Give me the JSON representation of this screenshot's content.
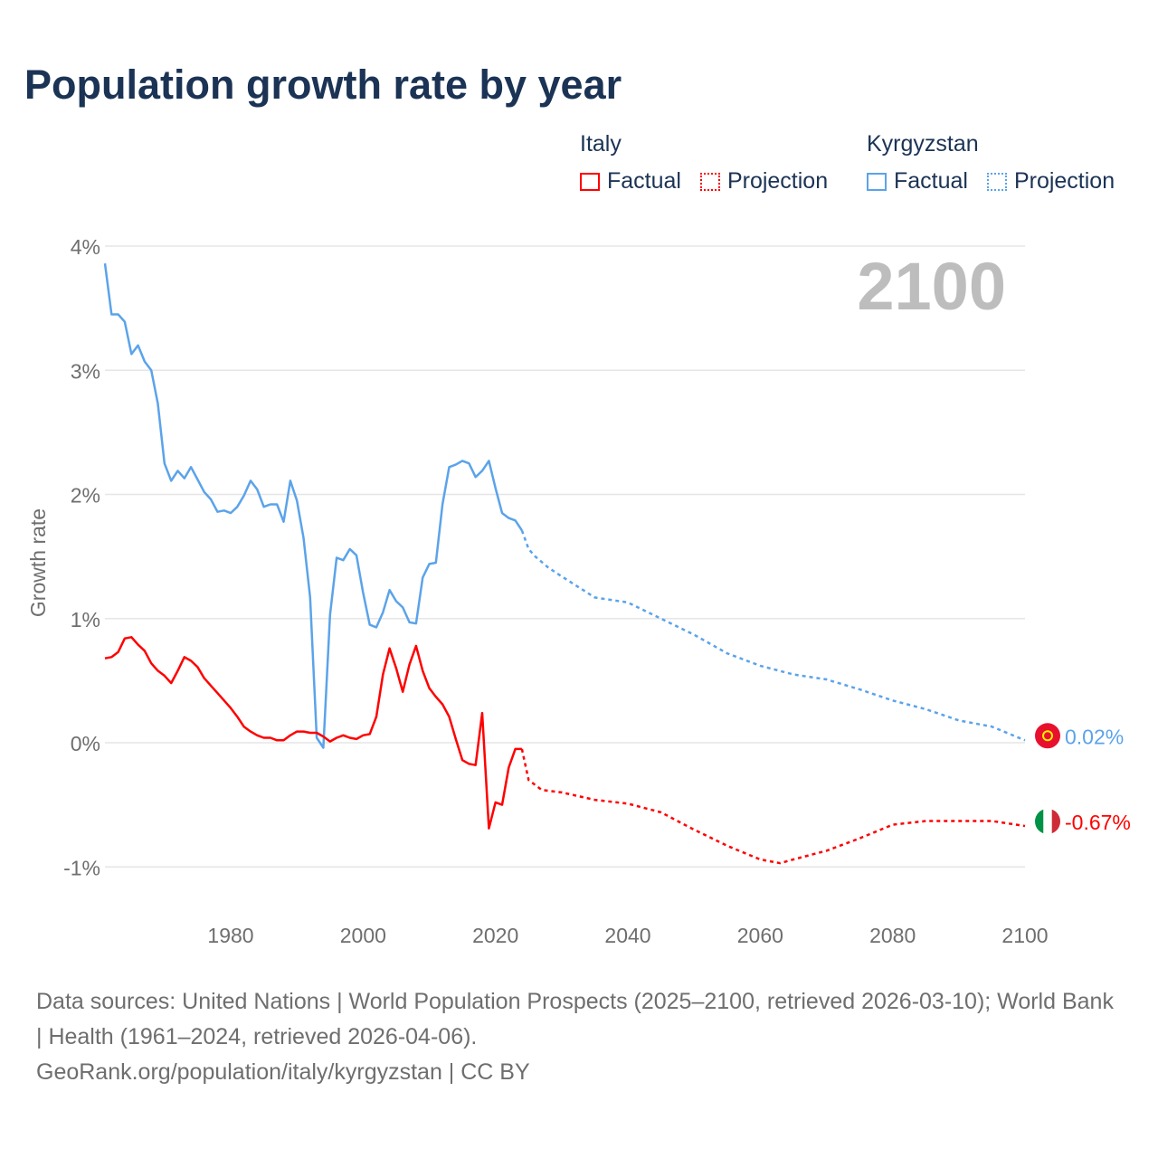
{
  "title": "Population growth rate by year",
  "legend": {
    "groups": [
      {
        "name": "Italy",
        "factual": "Factual",
        "projection": "Projection",
        "color": "#ff0000"
      },
      {
        "name": "Kyrgyzstan",
        "factual": "Factual",
        "projection": "Projection",
        "color": "#5ba3ea"
      }
    ]
  },
  "year_label": "2100",
  "source": {
    "line1": "Data sources: United Nations | World Population Prospects (2025–2100, retrieved 2026-03-10); World Bank | Health (1961–2024, retrieved 2026-04-06).",
    "line2": "GeoRank.org/population/italy/kyrgyzstan | CC BY"
  },
  "chart_data": {
    "type": "line",
    "title": "Population growth rate by year",
    "xlabel": "",
    "ylabel": "Growth rate",
    "xlim": [
      1961,
      2100
    ],
    "ylim": [
      -1.3,
      4.1
    ],
    "x_ticks": [
      1980,
      2000,
      2020,
      2040,
      2060,
      2080,
      2100
    ],
    "x_tick_labels": [
      "1980",
      "2000",
      "2020",
      "2040",
      "2060",
      "2080",
      "2100"
    ],
    "y_ticks": [
      4,
      3,
      2,
      1,
      0,
      -1
    ],
    "y_tick_labels": [
      "4%",
      "3%",
      "2%",
      "1%",
      "0%",
      "-1%"
    ],
    "grid": true,
    "legend_position": "top-right",
    "series": [
      {
        "name": "Kyrgyzstan",
        "color": "#5ba3ea",
        "end_label": "0.02%",
        "factual": {
          "x": [
            1961,
            1962,
            1963,
            1964,
            1965,
            1966,
            1967,
            1968,
            1969,
            1970,
            1971,
            1972,
            1973,
            1974,
            1975,
            1976,
            1977,
            1978,
            1979,
            1980,
            1981,
            1982,
            1983,
            1984,
            1985,
            1986,
            1987,
            1988,
            1989,
            1990,
            1991,
            1992,
            1993,
            1994,
            1995,
            1996,
            1997,
            1998,
            1999,
            2000,
            2001,
            2002,
            2003,
            2004,
            2005,
            2006,
            2007,
            2008,
            2009,
            2010,
            2011,
            2012,
            2013,
            2014,
            2015,
            2016,
            2017,
            2018,
            2019,
            2020,
            2021,
            2022,
            2023,
            2024
          ],
          "y": [
            3.86,
            3.45,
            3.45,
            3.39,
            3.13,
            3.2,
            3.07,
            3.0,
            2.73,
            2.25,
            2.11,
            2.19,
            2.13,
            2.22,
            2.12,
            2.02,
            1.96,
            1.86,
            1.87,
            1.85,
            1.9,
            1.99,
            2.11,
            2.04,
            1.9,
            1.92,
            1.92,
            1.78,
            2.11,
            1.95,
            1.65,
            1.17,
            0.04,
            -0.04,
            1.03,
            1.49,
            1.47,
            1.56,
            1.51,
            1.21,
            0.95,
            0.93,
            1.05,
            1.23,
            1.14,
            1.09,
            0.97,
            0.96,
            1.33,
            1.44,
            1.45,
            1.92,
            2.22,
            2.24,
            2.27,
            2.25,
            2.14,
            2.19,
            2.27,
            2.05,
            1.85,
            1.81,
            1.79,
            1.71
          ]
        },
        "projection": {
          "x": [
            2024,
            2025,
            2026,
            2028,
            2030,
            2035,
            2040,
            2045,
            2050,
            2055,
            2060,
            2065,
            2070,
            2075,
            2080,
            2085,
            2090,
            2095,
            2100
          ],
          "y": [
            1.71,
            1.56,
            1.5,
            1.41,
            1.34,
            1.17,
            1.13,
            1.0,
            0.87,
            0.72,
            0.62,
            0.55,
            0.51,
            0.43,
            0.34,
            0.27,
            0.18,
            0.13,
            0.02
          ]
        }
      },
      {
        "name": "Italy",
        "color": "#ff0000",
        "end_label": "-0.67%",
        "factual": {
          "x": [
            1961,
            1962,
            1963,
            1964,
            1965,
            1966,
            1967,
            1968,
            1969,
            1970,
            1971,
            1972,
            1973,
            1974,
            1975,
            1976,
            1977,
            1978,
            1979,
            1980,
            1981,
            1982,
            1983,
            1984,
            1985,
            1986,
            1987,
            1988,
            1989,
            1990,
            1991,
            1992,
            1993,
            1994,
            1995,
            1996,
            1997,
            1998,
            1999,
            2000,
            2001,
            2002,
            2003,
            2004,
            2005,
            2006,
            2007,
            2008,
            2009,
            2010,
            2011,
            2012,
            2013,
            2014,
            2015,
            2016,
            2017,
            2018,
            2019,
            2020,
            2021,
            2022,
            2023,
            2024
          ],
          "y": [
            0.68,
            0.69,
            0.73,
            0.84,
            0.85,
            0.79,
            0.74,
            0.64,
            0.58,
            0.54,
            0.48,
            0.58,
            0.69,
            0.66,
            0.61,
            0.52,
            0.46,
            0.4,
            0.34,
            0.28,
            0.21,
            0.13,
            0.09,
            0.06,
            0.04,
            0.04,
            0.02,
            0.02,
            0.06,
            0.09,
            0.09,
            0.08,
            0.08,
            0.05,
            0.01,
            0.04,
            0.06,
            0.04,
            0.03,
            0.06,
            0.07,
            0.21,
            0.55,
            0.76,
            0.6,
            0.41,
            0.63,
            0.78,
            0.58,
            0.44,
            0.37,
            0.31,
            0.21,
            0.03,
            -0.14,
            -0.17,
            -0.18,
            0.24,
            -0.69,
            -0.48,
            -0.5,
            -0.2,
            -0.05,
            -0.05
          ]
        },
        "projection": {
          "x": [
            2024,
            2025,
            2027,
            2030,
            2035,
            2040,
            2045,
            2050,
            2055,
            2060,
            2063,
            2065,
            2070,
            2075,
            2080,
            2085,
            2090,
            2095,
            2100
          ],
          "y": [
            -0.05,
            -0.3,
            -0.38,
            -0.4,
            -0.46,
            -0.49,
            -0.56,
            -0.7,
            -0.83,
            -0.94,
            -0.97,
            -0.94,
            -0.87,
            -0.77,
            -0.66,
            -0.63,
            -0.63,
            -0.63,
            -0.67
          ]
        }
      }
    ]
  }
}
